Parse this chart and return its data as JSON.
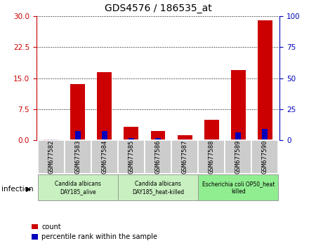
{
  "title": "GDS4576 / 186535_at",
  "samples": [
    "GSM677582",
    "GSM677583",
    "GSM677584",
    "GSM677585",
    "GSM677586",
    "GSM677587",
    "GSM677588",
    "GSM677589",
    "GSM677590"
  ],
  "counts": [
    0.1,
    13.5,
    16.5,
    3.2,
    2.2,
    1.2,
    5.0,
    17.0,
    29.0
  ],
  "percentile_ranks": [
    0.3,
    7.5,
    7.5,
    1.5,
    1.8,
    0.5,
    0.8,
    6.5,
    9.0
  ],
  "ylim_left": [
    0,
    30
  ],
  "ylim_right": [
    0,
    100
  ],
  "yticks_left": [
    0,
    7.5,
    15,
    22.5,
    30
  ],
  "yticks_right": [
    0,
    25,
    50,
    75,
    100
  ],
  "groups": [
    {
      "label": "Candida albicans\nDAY185_alive",
      "start": 0,
      "end": 3,
      "color": "#c8f0c0"
    },
    {
      "label": "Candida albicans\nDAY185_heat-killed",
      "start": 3,
      "end": 6,
      "color": "#c8f0c0"
    },
    {
      "label": "Escherichia coli OP50_heat\nkilled",
      "start": 6,
      "end": 9,
      "color": "#90ee90"
    }
  ],
  "group_label": "infection",
  "bar_color_count": "#cc0000",
  "bar_color_pct": "#0000bb",
  "legend_count": "count",
  "legend_pct": "percentile rank within the sample",
  "bg_color": "#ffffff",
  "tick_color_left": "#cc0000",
  "tick_color_right": "#0000bb",
  "sample_bg_color": "#cccccc"
}
